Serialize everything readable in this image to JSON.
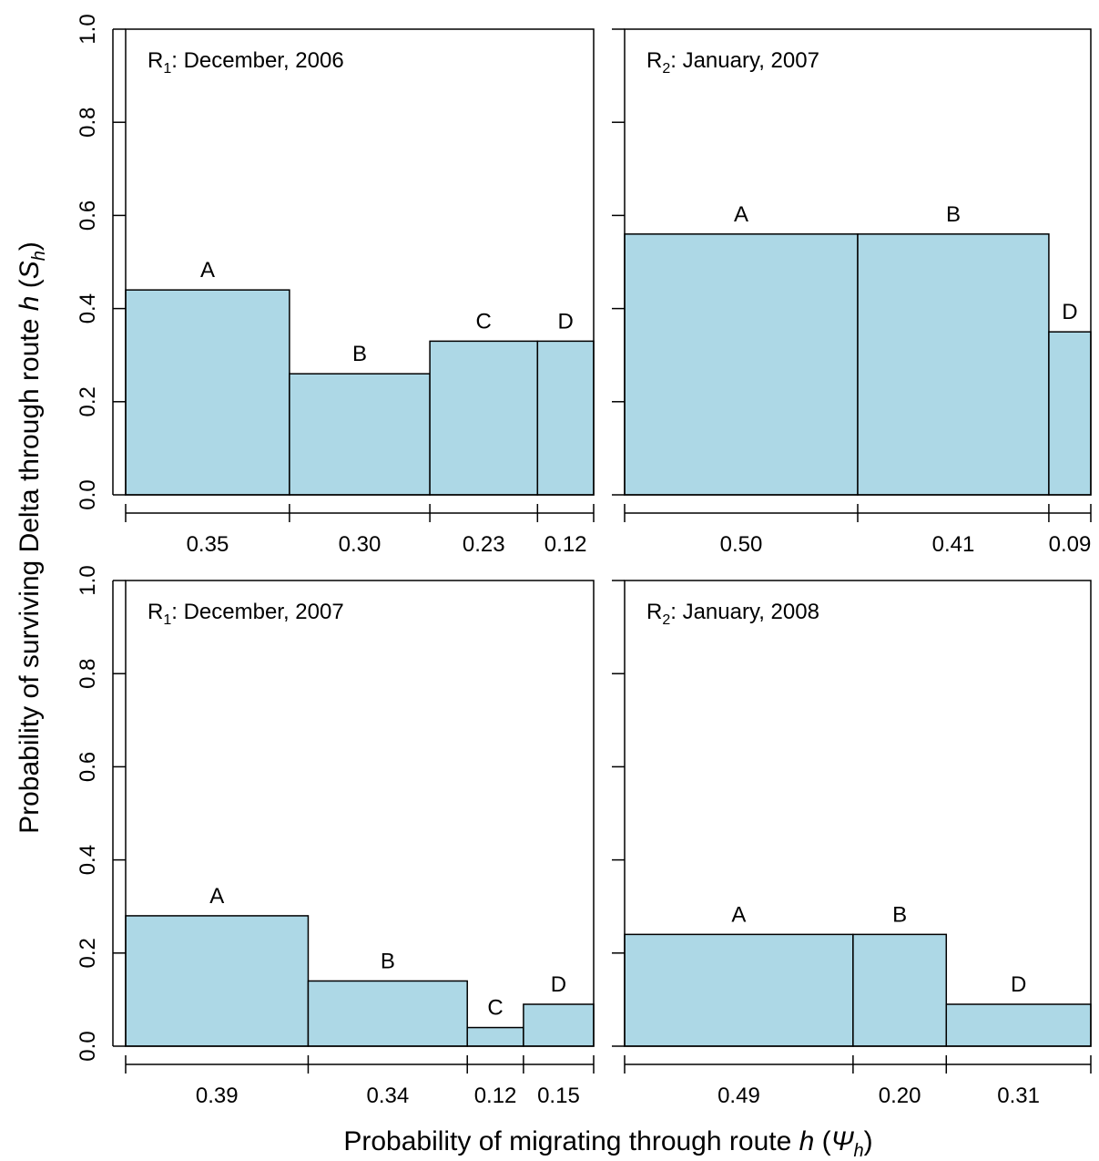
{
  "figure": {
    "ylabel": {
      "prefix": "Probability of surviving Delta through route ",
      "h": "h",
      "paren_open": " (",
      "S": "S",
      "sub": "h",
      "paren_close": ")"
    },
    "xlabel": {
      "prefix": "Probability of migrating through route ",
      "h": "h",
      "paren_open": " (",
      "psi": "Ψ",
      "sub": "h",
      "paren_close": ")"
    },
    "colors": {
      "bar_fill": "#add8e6",
      "stroke": "#000000"
    }
  },
  "chart_data": [
    {
      "type": "bar",
      "subtype": "variable-width (mosaic) bar",
      "panel_label": {
        "R": "R",
        "sub": "1",
        "rest": ": December, 2006"
      },
      "categories": [
        "A",
        "B",
        "C",
        "D"
      ],
      "widths": [
        0.35,
        0.3,
        0.23,
        0.12
      ],
      "width_labels": [
        "0.35",
        "0.30",
        "0.23",
        "0.12"
      ],
      "values": [
        0.44,
        0.26,
        0.33,
        0.33
      ],
      "ylim": [
        0,
        1
      ],
      "yticks": [
        "0.0",
        "0.2",
        "0.4",
        "0.6",
        "0.8",
        "1.0"
      ]
    },
    {
      "type": "bar",
      "subtype": "variable-width (mosaic) bar",
      "panel_label": {
        "R": "R",
        "sub": "2",
        "rest": ": January, 2007"
      },
      "categories": [
        "A",
        "B",
        "D"
      ],
      "widths": [
        0.5,
        0.41,
        0.09
      ],
      "width_labels": [
        "0.50",
        "0.41",
        "0.09"
      ],
      "values": [
        0.56,
        0.56,
        0.35
      ],
      "ylim": [
        0,
        1
      ],
      "yticks": [
        "0.0",
        "0.2",
        "0.4",
        "0.6",
        "0.8",
        "1.0"
      ]
    },
    {
      "type": "bar",
      "subtype": "variable-width (mosaic) bar",
      "panel_label": {
        "R": "R",
        "sub": "1",
        "rest": ": December, 2007"
      },
      "categories": [
        "A",
        "B",
        "C",
        "D"
      ],
      "widths": [
        0.39,
        0.34,
        0.12,
        0.15
      ],
      "width_labels": [
        "0.39",
        "0.34",
        "0.12",
        "0.15"
      ],
      "values": [
        0.28,
        0.14,
        0.04,
        0.09
      ],
      "ylim": [
        0,
        1
      ],
      "yticks": [
        "0.0",
        "0.2",
        "0.4",
        "0.6",
        "0.8",
        "1.0"
      ]
    },
    {
      "type": "bar",
      "subtype": "variable-width (mosaic) bar",
      "panel_label": {
        "R": "R",
        "sub": "2",
        "rest": ": January, 2008"
      },
      "categories": [
        "A",
        "B",
        "D"
      ],
      "widths": [
        0.49,
        0.2,
        0.31
      ],
      "width_labels": [
        "0.49",
        "0.20",
        "0.31"
      ],
      "values": [
        0.24,
        0.24,
        0.09
      ],
      "ylim": [
        0,
        1
      ],
      "yticks": [
        "0.0",
        "0.2",
        "0.4",
        "0.6",
        "0.8",
        "1.0"
      ]
    }
  ]
}
